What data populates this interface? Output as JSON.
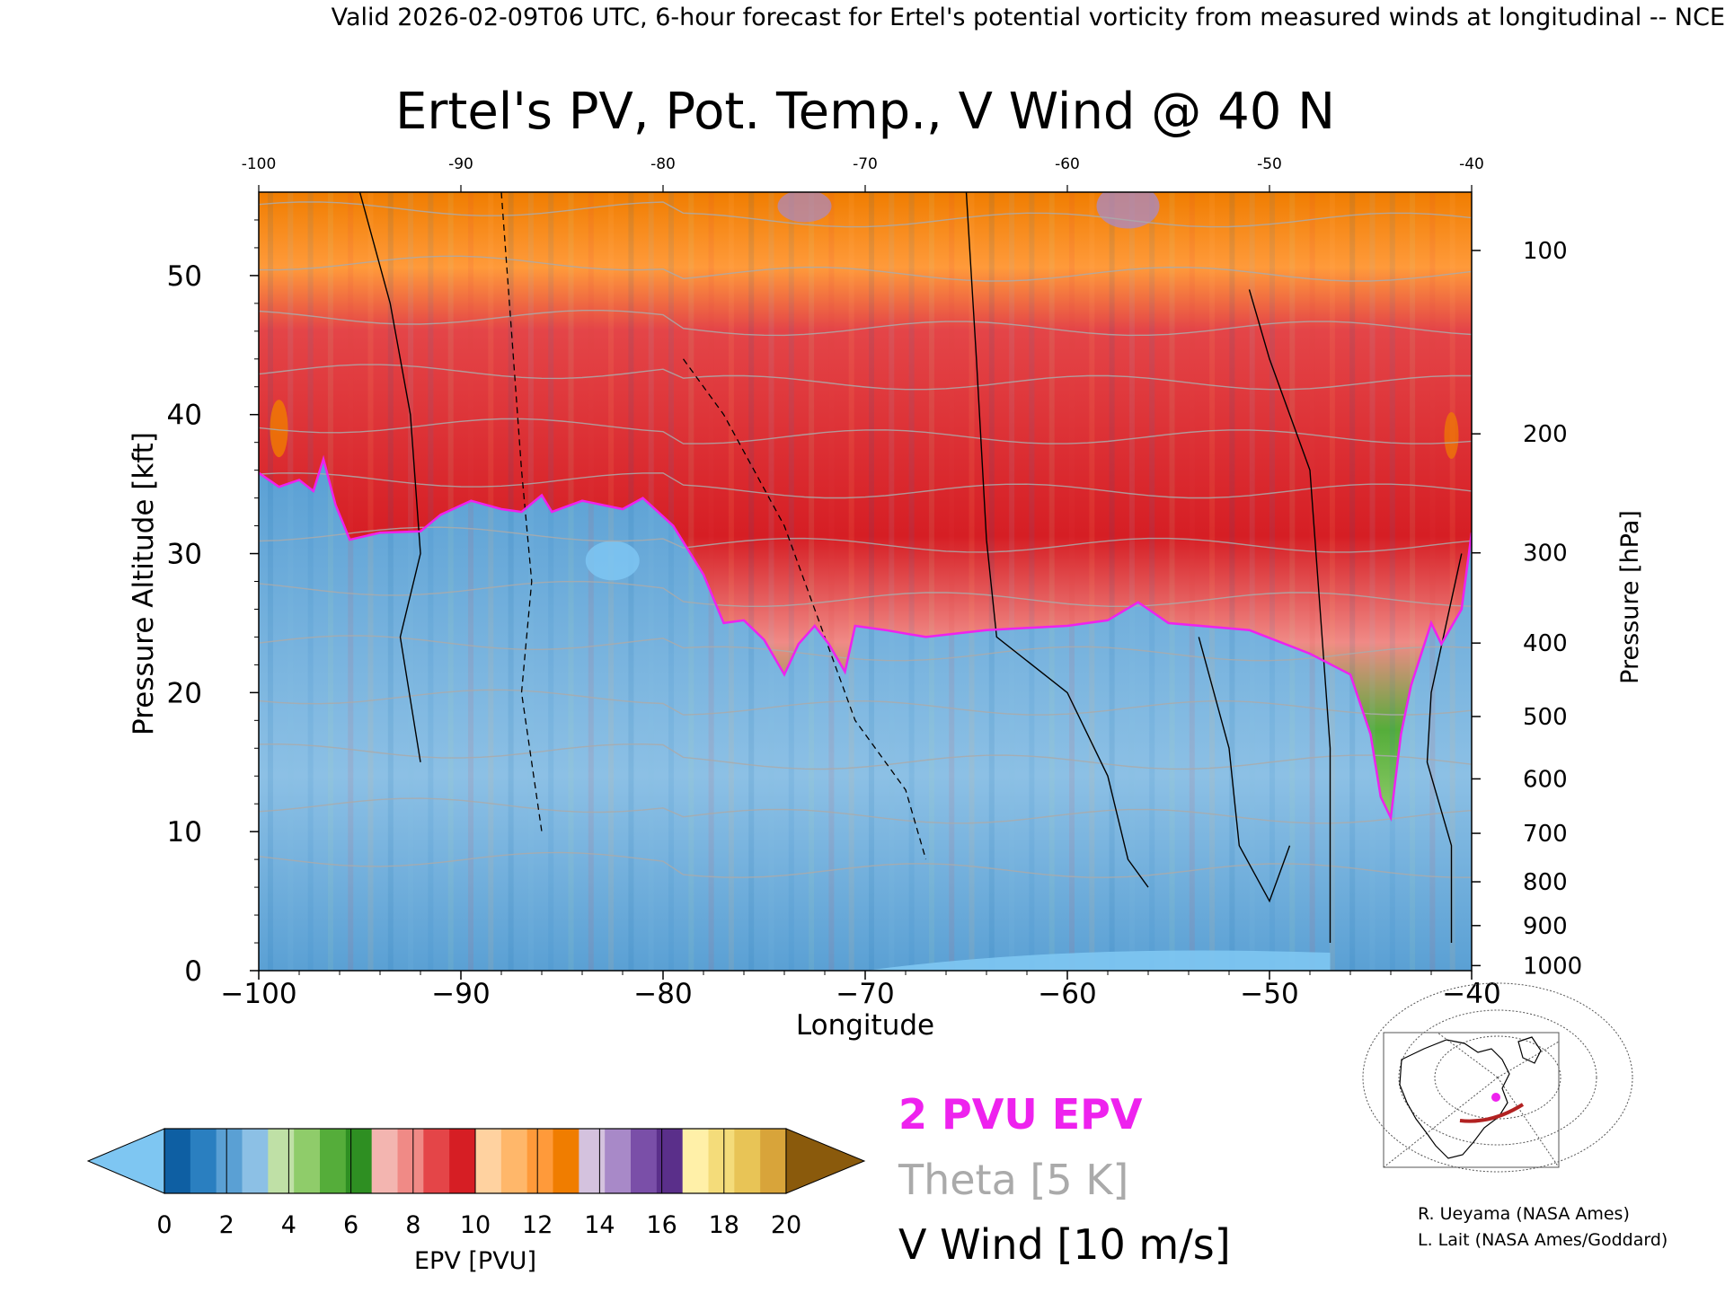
{
  "header": {
    "valid_line": "Valid 2026-02-09T06 UTC, 6-hour forecast for Ertel's potential vorticity from measured winds at longitudinal -- NCE"
  },
  "chart_data": {
    "type": "heatmap",
    "title": "Ertel's PV, Pot. Temp., V Wind @ 40 N",
    "xlabel": "Longitude",
    "ylabel_left": "Pressure Altitude [kft]",
    "ylabel_right": "Pressure [hPa]",
    "xlim": [
      -100,
      -40
    ],
    "ylim": [
      0,
      56
    ],
    "x_ticks": [
      -100,
      -90,
      -80,
      -70,
      -60,
      -50,
      -40
    ],
    "x_tick_labels": [
      "−100",
      "−90",
      "−80",
      "−70",
      "−60",
      "−50",
      "−40"
    ],
    "x_top_tick_labels": [
      "-100",
      "-90",
      "-80",
      "-70",
      "-60",
      "-50",
      "-40"
    ],
    "y_ticks_kft": [
      0,
      10,
      20,
      30,
      40,
      50
    ],
    "pressure_ticks": [
      {
        "hpa": 100,
        "label": "100"
      },
      {
        "hpa": 200,
        "label": "200"
      },
      {
        "hpa": 300,
        "label": "300"
      },
      {
        "hpa": 400,
        "label": "400"
      },
      {
        "hpa": 500,
        "label": "500"
      },
      {
        "hpa": 600,
        "label": "600"
      },
      {
        "hpa": 700,
        "label": "700"
      },
      {
        "hpa": 800,
        "label": "800"
      },
      {
        "hpa": 900,
        "label": "900"
      },
      {
        "hpa": 1000,
        "label": "1000"
      }
    ],
    "tropopause_2pvu_kft": [
      [
        -100,
        35.8
      ],
      [
        -99,
        34.8
      ],
      [
        -98,
        35.3
      ],
      [
        -97.3,
        34.5
      ],
      [
        -96.8,
        36.8
      ],
      [
        -96.2,
        33.5
      ],
      [
        -95.5,
        31.0
      ],
      [
        -94,
        31.5
      ],
      [
        -92,
        31.6
      ],
      [
        -91,
        32.8
      ],
      [
        -89.5,
        33.8
      ],
      [
        -88,
        33.2
      ],
      [
        -87,
        33.0
      ],
      [
        -86,
        34.2
      ],
      [
        -85.5,
        33.0
      ],
      [
        -84,
        33.8
      ],
      [
        -82,
        33.2
      ],
      [
        -81,
        34.0
      ],
      [
        -79.5,
        32.0
      ],
      [
        -78,
        28.5
      ],
      [
        -77,
        25.0
      ],
      [
        -76,
        25.2
      ],
      [
        -75,
        23.8
      ],
      [
        -74,
        21.3
      ],
      [
        -73.3,
        23.5
      ],
      [
        -72.5,
        24.8
      ],
      [
        -71.8,
        23.5
      ],
      [
        -71,
        21.5
      ],
      [
        -70.5,
        24.8
      ],
      [
        -69,
        24.5
      ],
      [
        -67,
        24.0
      ],
      [
        -64,
        24.5
      ],
      [
        -60,
        24.8
      ],
      [
        -58,
        25.2
      ],
      [
        -56.5,
        26.5
      ],
      [
        -55,
        25.0
      ],
      [
        -51,
        24.5
      ],
      [
        -48,
        22.8
      ],
      [
        -46,
        21.3
      ],
      [
        -45,
        17.0
      ],
      [
        -44.5,
        12.5
      ],
      [
        -44,
        11.0
      ],
      [
        -43.5,
        17.0
      ],
      [
        -43,
        20.5
      ],
      [
        -42,
        25.0
      ],
      [
        -41.5,
        23.5
      ],
      [
        -40.5,
        26.0
      ],
      [
        -40,
        31.5
      ]
    ],
    "v_wind_0_contour_segments_kft": [
      [
        [
          -95,
          56
        ],
        [
          -93.5,
          48
        ],
        [
          -92.5,
          40
        ],
        [
          -92,
          30
        ],
        [
          -93,
          24
        ],
        [
          -92,
          15
        ]
      ],
      [
        [
          -65,
          56
        ],
        [
          -64.5,
          44
        ],
        [
          -64,
          31
        ],
        [
          -63.5,
          24
        ],
        [
          -60,
          20
        ],
        [
          -58,
          14
        ],
        [
          -57,
          8
        ],
        [
          -56,
          6
        ]
      ],
      [
        [
          -53.5,
          24
        ],
        [
          -52,
          16
        ],
        [
          -51.5,
          9
        ],
        [
          -50,
          5
        ],
        [
          -49,
          9
        ]
      ],
      [
        [
          -51,
          49
        ],
        [
          -50,
          44
        ],
        [
          -48,
          36
        ],
        [
          -47.5,
          26
        ],
        [
          -47,
          16
        ],
        [
          -47,
          2
        ]
      ],
      [
        [
          -40.5,
          30
        ],
        [
          -42,
          20
        ],
        [
          -42.2,
          15
        ],
        [
          -41,
          9
        ],
        [
          -41,
          2
        ]
      ]
    ],
    "v_wind_neg10_contour_segments_kft": [
      [
        [
          -88,
          56
        ],
        [
          -87.5,
          46
        ],
        [
          -87,
          36
        ],
        [
          -86.5,
          28
        ],
        [
          -87,
          20
        ],
        [
          -86,
          10
        ]
      ],
      [
        [
          -79,
          44
        ],
        [
          -77,
          40
        ],
        [
          -74,
          32
        ],
        [
          -72,
          24
        ],
        [
          -70.5,
          18
        ],
        [
          -68,
          13
        ],
        [
          -67,
          8
        ]
      ]
    ],
    "theta_levels_k": [
      300,
      310,
      320,
      330,
      340,
      350,
      360,
      370,
      380,
      390,
      400,
      410,
      420
    ],
    "colorbar": {
      "label": "EPV [PVU]",
      "min": 0,
      "max": 20,
      "ticks": [
        "0",
        "2",
        "4",
        "6",
        "8",
        "10",
        "12",
        "14",
        "16",
        "18",
        "20"
      ],
      "colors": [
        "#0e5fa3",
        "#2a7fc0",
        "#5aa0d4",
        "#8cc0e5",
        "#bfe0a6",
        "#8fcc6a",
        "#55ad3a",
        "#2e8f22",
        "#f3b5b0",
        "#f08a86",
        "#e44548",
        "#d61e24",
        "#ffd2a0",
        "#ffb76a",
        "#ff9a3a",
        "#f07d00",
        "#d4c2de",
        "#a889c8",
        "#7a4fa8",
        "#5a2f8a",
        "#fff0a8",
        "#f4dc7a",
        "#e8c456",
        "#d8a43a"
      ],
      "under_color": "#7ec6f2",
      "over_color": "#8a5a0c"
    }
  },
  "legend": {
    "epv_line": "2 PVU EPV",
    "theta_line": "Theta [5 K]",
    "wind_line": "V Wind [10 m/s]",
    "epv_color": "#ee22ee",
    "theta_color": "#aaaaaa",
    "wind_color": "#000000"
  },
  "credits": {
    "line1": "R. Ueyama (NASA Ames)",
    "line2": "L. Lait (NASA Ames/Goddard)"
  },
  "locator_map": {
    "track_color": "#b22222",
    "marker_color": "#ee22ee"
  }
}
